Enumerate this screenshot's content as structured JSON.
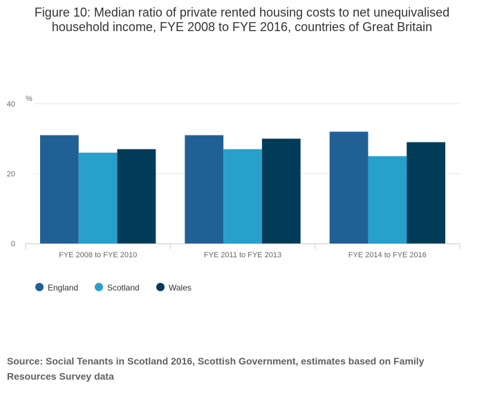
{
  "chart_data": {
    "type": "bar",
    "title": "Figure 10: Median ratio of private rented housing costs to net unequivalised household income, FYE 2008 to FYE 2016, countries of Great Britain",
    "categories": [
      "FYE 2008 to FYE 2010",
      "FYE 2011 to FYE 2013",
      "FYE 2014 to FYE 2016"
    ],
    "series": [
      {
        "name": "England",
        "color": "#206095",
        "values": [
          31,
          31,
          32
        ]
      },
      {
        "name": "Scotland",
        "color": "#27a0cc",
        "values": [
          26,
          27,
          25
        ]
      },
      {
        "name": "Wales",
        "color": "#003c57",
        "values": [
          27,
          30,
          29
        ]
      }
    ],
    "ylabel": "%",
    "ylim": [
      0,
      40
    ],
    "yticks": [
      0,
      20,
      40
    ],
    "grid": true,
    "legend": "bottom-left"
  },
  "source": "Source: Social Tenants in Scotland 2016, Scottish Government, estimates based on Family Resources Survey data"
}
